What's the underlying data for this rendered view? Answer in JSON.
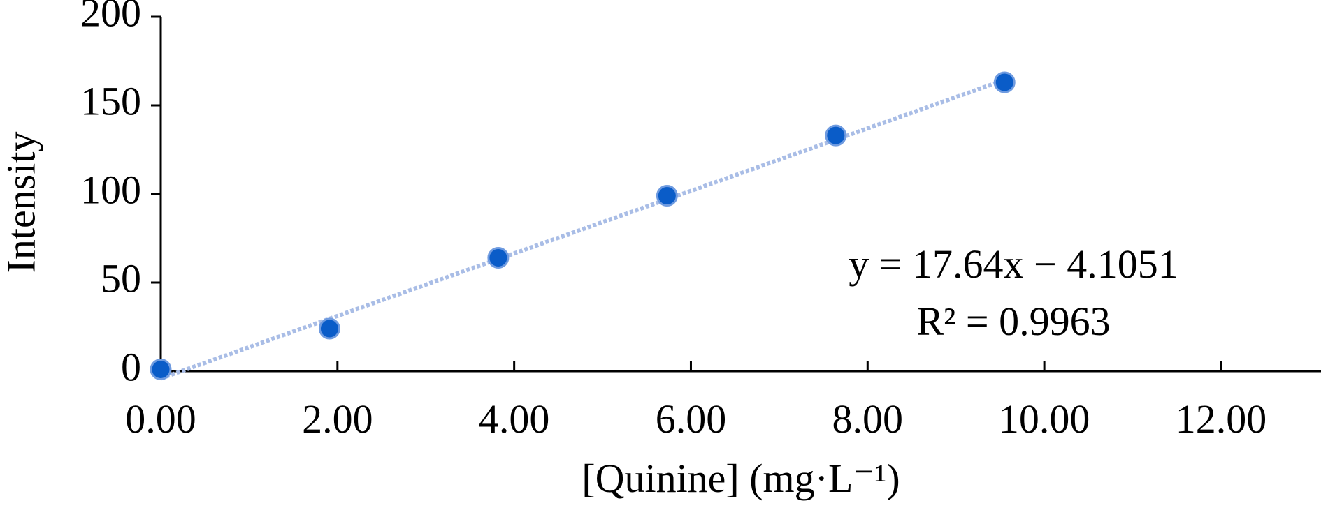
{
  "chart_data": {
    "type": "scatter",
    "x_label": "[Quinine] (mg·L⁻¹)",
    "y_label": "Intensity",
    "x": [
      0,
      1.91,
      3.82,
      5.73,
      7.64,
      9.55
    ],
    "series": [
      {
        "color": "#0a5cc8",
        "values": [
          1,
          24,
          64,
          99,
          133,
          163
        ]
      }
    ],
    "trendline": {
      "slope": 17.64,
      "intercept": -4.1051,
      "color": "#a9bde6",
      "equation": "y = 17.64x − 4.1051",
      "r2_text": "R² = 0.9963"
    },
    "xlim": [
      0,
      13.1
    ],
    "ylim": [
      0,
      200
    ],
    "xticks": [
      {
        "value": 0,
        "label": "0.00"
      },
      {
        "value": 2,
        "label": "2.00"
      },
      {
        "value": 4,
        "label": "4.00"
      },
      {
        "value": 6,
        "label": "6.00"
      },
      {
        "value": 8,
        "label": "8.00"
      },
      {
        "value": 10,
        "label": "10.00"
      },
      {
        "value": 12,
        "label": "12.00"
      }
    ],
    "yticks": [
      0,
      50,
      100,
      150,
      200
    ]
  }
}
